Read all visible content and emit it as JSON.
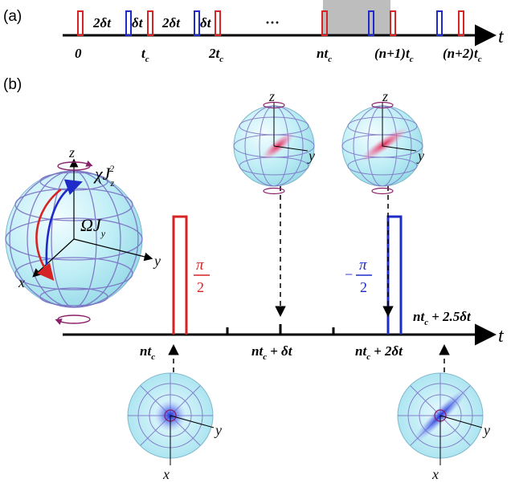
{
  "panel_a": {
    "label": "(a)",
    "axis_label": "t",
    "interval_labels": [
      "2δt",
      "δt",
      "2δt",
      "δt"
    ],
    "ellipsis": "···",
    "tick_labels": [
      "0",
      "t",
      "2t",
      "nt",
      "(n+1)t",
      "(n+2)t"
    ],
    "tick_subscript": "c"
  },
  "panel_b": {
    "label": "(b)",
    "axis_label": "t",
    "big_sphere_axes": {
      "z": "z",
      "y": "y",
      "x": "x"
    },
    "twist_label": "χJ",
    "twist_sub": "z",
    "twist_sup": "2",
    "rotation_label": "ΩJ",
    "rotation_sub": "y",
    "pulse_red": {
      "num": "π",
      "den": "2"
    },
    "pulse_blue": {
      "sign": "−",
      "num": "π",
      "den": "2"
    },
    "time_labels": [
      "nt",
      "nt",
      "nt",
      "nt"
    ],
    "time_sub": "c",
    "time_suffixes": [
      "",
      "+ δt",
      "+ 2δt",
      "+ 2.5δt"
    ],
    "small_sphere_axes": {
      "z": "z",
      "y": "y",
      "x": "x"
    }
  },
  "colors": {
    "red_pulse": "#d62424",
    "blue_pulse": "#1f2bc8",
    "shade": "#bdbdbd",
    "sphere": "#bfeef6",
    "grid": "#7a6fc4",
    "squeeze_red": "#e0204a",
    "squeeze_blue": "#2233dd",
    "twist_arrow": "#8a1f6a"
  }
}
